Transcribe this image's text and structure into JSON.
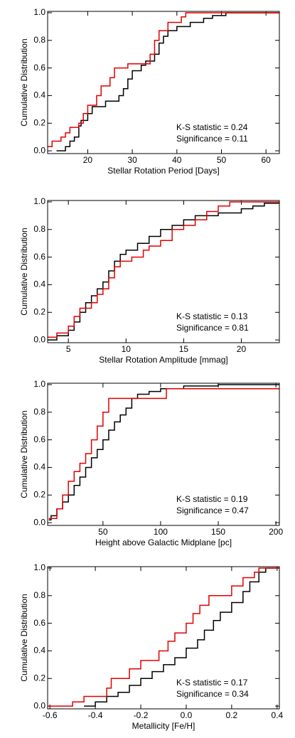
{
  "chart_data": [
    {
      "type": "line",
      "drawstyle": "steps-post",
      "xlabel": "Stellar Rotation Period [Days]",
      "ylabel": "Cumulative Distribution",
      "xlim": [
        11,
        63
      ],
      "xticks": [
        20,
        30,
        40,
        50,
        60
      ],
      "ylim": [
        -0.02,
        1.01
      ],
      "yticks": [
        {
          "value": 0,
          "label": "0.0"
        },
        0.2,
        0.4,
        0.6,
        0.8,
        {
          "value": 1,
          "label": "1.0"
        }
      ],
      "annotations": [
        "K-S statistic = 0.24",
        "Significance = 0.11"
      ],
      "series": [
        {
          "color": "#000000",
          "x": [
            13,
            15,
            16,
            17,
            18,
            18.5,
            20,
            21,
            24,
            27,
            28,
            29,
            30,
            32,
            33,
            35,
            36,
            37,
            38,
            40,
            43,
            46,
            48,
            51,
            63
          ],
          "values": [
            0,
            0.03,
            0.07,
            0.1,
            0.18,
            0.22,
            0.27,
            0.32,
            0.36,
            0.4,
            0.45,
            0.52,
            0.58,
            0.62,
            0.65,
            0.7,
            0.78,
            0.83,
            0.87,
            0.9,
            0.93,
            0.96,
            0.98,
            1.0,
            1.0
          ]
        },
        {
          "color": "#e00000",
          "x": [
            11,
            12,
            14,
            15,
            16,
            18,
            19,
            20,
            22,
            23,
            25,
            26,
            29,
            33,
            34,
            35,
            36,
            38,
            41,
            42,
            63
          ],
          "values": [
            0.03,
            0.07,
            0.1,
            0.13,
            0.17,
            0.2,
            0.27,
            0.33,
            0.4,
            0.47,
            0.53,
            0.6,
            0.63,
            0.63,
            0.7,
            0.8,
            0.87,
            0.93,
            0.97,
            1.0,
            1.0
          ]
        }
      ]
    },
    {
      "type": "line",
      "drawstyle": "steps-post",
      "xlabel": "Stellar Rotation Amplitude [mmag]",
      "ylabel": "Cumulative Distribution",
      "xlim": [
        3.2,
        23.3
      ],
      "xticks": [
        5,
        10,
        15,
        20
      ],
      "ylim": [
        -0.02,
        1.01
      ],
      "yticks": [
        {
          "value": 0,
          "label": "0.0"
        },
        0.2,
        0.4,
        0.6,
        0.8,
        {
          "value": 1,
          "label": "1.0"
        }
      ],
      "annotations": [
        "K-S statistic = 0.13",
        "Significance = 0.81"
      ],
      "series": [
        {
          "color": "#000000",
          "x": [
            3.2,
            4,
            5,
            5.5,
            6,
            6.5,
            7,
            7.5,
            8,
            8.5,
            9,
            9.5,
            10,
            11,
            12,
            13,
            14,
            15,
            16,
            18,
            20,
            21,
            22,
            23.3
          ],
          "values": [
            0,
            0.03,
            0.07,
            0.13,
            0.2,
            0.27,
            0.32,
            0.37,
            0.42,
            0.5,
            0.57,
            0.62,
            0.65,
            0.7,
            0.75,
            0.8,
            0.83,
            0.87,
            0.9,
            0.92,
            0.95,
            0.97,
            0.99,
            1.0
          ]
        },
        {
          "color": "#e00000",
          "x": [
            3.2,
            4,
            5,
            5.5,
            6,
            7,
            7.5,
            8,
            8.5,
            9,
            9.5,
            10.5,
            11.5,
            12,
            13,
            14,
            15,
            16,
            17,
            18,
            19,
            23.3
          ],
          "values": [
            0.02,
            0.05,
            0.1,
            0.17,
            0.23,
            0.27,
            0.33,
            0.37,
            0.45,
            0.53,
            0.57,
            0.6,
            0.65,
            0.68,
            0.72,
            0.8,
            0.83,
            0.87,
            0.93,
            0.97,
            1.0,
            1.0
          ]
        }
      ]
    },
    {
      "type": "line",
      "drawstyle": "steps-post",
      "xlabel": "Height above Galactic Midplane [pc]",
      "ylabel": "Cumulative Distribution",
      "xlim": [
        2,
        203
      ],
      "xticks": [
        50,
        100,
        150,
        200
      ],
      "ylim": [
        -0.02,
        1.01
      ],
      "yticks": [
        {
          "value": 0,
          "label": "0.0"
        },
        0.2,
        0.4,
        0.6,
        0.8,
        {
          "value": 1,
          "label": "1.0"
        }
      ],
      "annotations": [
        "K-S statistic = 0.19",
        "Significance = 0.47"
      ],
      "series": [
        {
          "color": "#000000",
          "x": [
            3,
            5,
            10,
            15,
            20,
            25,
            30,
            35,
            40,
            45,
            50,
            55,
            60,
            65,
            70,
            75,
            80,
            90,
            100,
            120,
            150,
            203
          ],
          "values": [
            0.02,
            0.05,
            0.1,
            0.15,
            0.2,
            0.27,
            0.33,
            0.4,
            0.47,
            0.53,
            0.6,
            0.67,
            0.73,
            0.78,
            0.83,
            0.9,
            0.93,
            0.95,
            0.97,
            0.99,
            1.0,
            1.0
          ]
        },
        {
          "color": "#e00000",
          "x": [
            3,
            10,
            15,
            20,
            25,
            30,
            35,
            40,
            45,
            50,
            55,
            100,
            105,
            203
          ],
          "values": [
            0.03,
            0.1,
            0.2,
            0.3,
            0.37,
            0.43,
            0.5,
            0.6,
            0.7,
            0.8,
            0.9,
            0.9,
            0.97,
            0.97
          ]
        }
      ]
    },
    {
      "type": "line",
      "drawstyle": "steps-post",
      "xlabel": "Metallicity [Fe/H]",
      "ylabel": "Cumulative Distribution",
      "xlim": [
        -0.61,
        0.41
      ],
      "xticks": [
        -0.6,
        -0.4,
        -0.2,
        {
          "value": 0,
          "label": "0.0"
        },
        0.2,
        0.4
      ],
      "ylim": [
        -0.02,
        1.01
      ],
      "yticks": [
        {
          "value": 0,
          "label": "0.0"
        },
        0.2,
        0.4,
        0.6,
        0.8,
        {
          "value": 1,
          "label": "1.0"
        }
      ],
      "annotations": [
        "K-S statistic = 0.17",
        "Significance = 0.34"
      ],
      "series": [
        {
          "color": "#000000",
          "x": [
            -0.45,
            -0.4,
            -0.35,
            -0.3,
            -0.25,
            -0.2,
            -0.15,
            -0.1,
            -0.05,
            0,
            0.05,
            0.08,
            0.12,
            0.15,
            0.2,
            0.25,
            0.28,
            0.32,
            0.35,
            0.41
          ],
          "values": [
            0,
            0.03,
            0.07,
            0.1,
            0.15,
            0.2,
            0.25,
            0.3,
            0.35,
            0.42,
            0.48,
            0.55,
            0.62,
            0.68,
            0.75,
            0.83,
            0.9,
            0.97,
            1.0,
            1.0
          ]
        },
        {
          "color": "#e00000",
          "x": [
            -0.61,
            -0.5,
            -0.45,
            -0.35,
            -0.33,
            -0.25,
            -0.2,
            -0.12,
            -0.08,
            -0.05,
            0,
            0.03,
            0.06,
            0.1,
            0.2,
            0.25,
            0.3,
            0.32,
            0.41
          ],
          "values": [
            0,
            0.03,
            0.07,
            0.13,
            0.2,
            0.27,
            0.33,
            0.4,
            0.47,
            0.53,
            0.6,
            0.67,
            0.73,
            0.8,
            0.87,
            0.93,
            0.97,
            1.0,
            1.0
          ]
        }
      ]
    }
  ]
}
